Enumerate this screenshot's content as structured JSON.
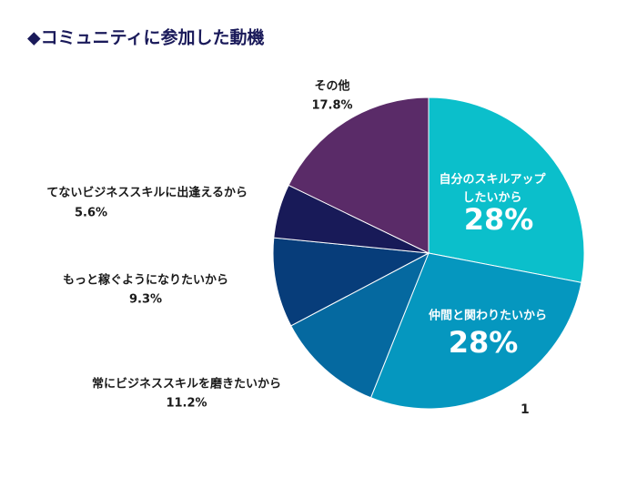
{
  "chart_data": {
    "type": "pie",
    "title": "◆コミュニティに参加した動機",
    "categories": [
      "自分のスキルアップしたいから",
      "仲間と関わりたいから",
      "常にビジネススキルを磨きたいから",
      "もっと稼ぐようになりたいから",
      "てないビジネススキルに出逢えるから",
      "その他"
    ],
    "values": [
      28,
      28,
      11.2,
      9.3,
      5.6,
      17.8
    ],
    "value_labels": [
      "28%",
      "28%",
      "11.2%",
      "9.3%",
      "5.6%",
      "17.8%"
    ],
    "colors": [
      "#0bbfcb",
      "#0597bf",
      "#0569a0",
      "#073d7a",
      "#181a58",
      "#5a2b68"
    ]
  },
  "footnote": "1"
}
